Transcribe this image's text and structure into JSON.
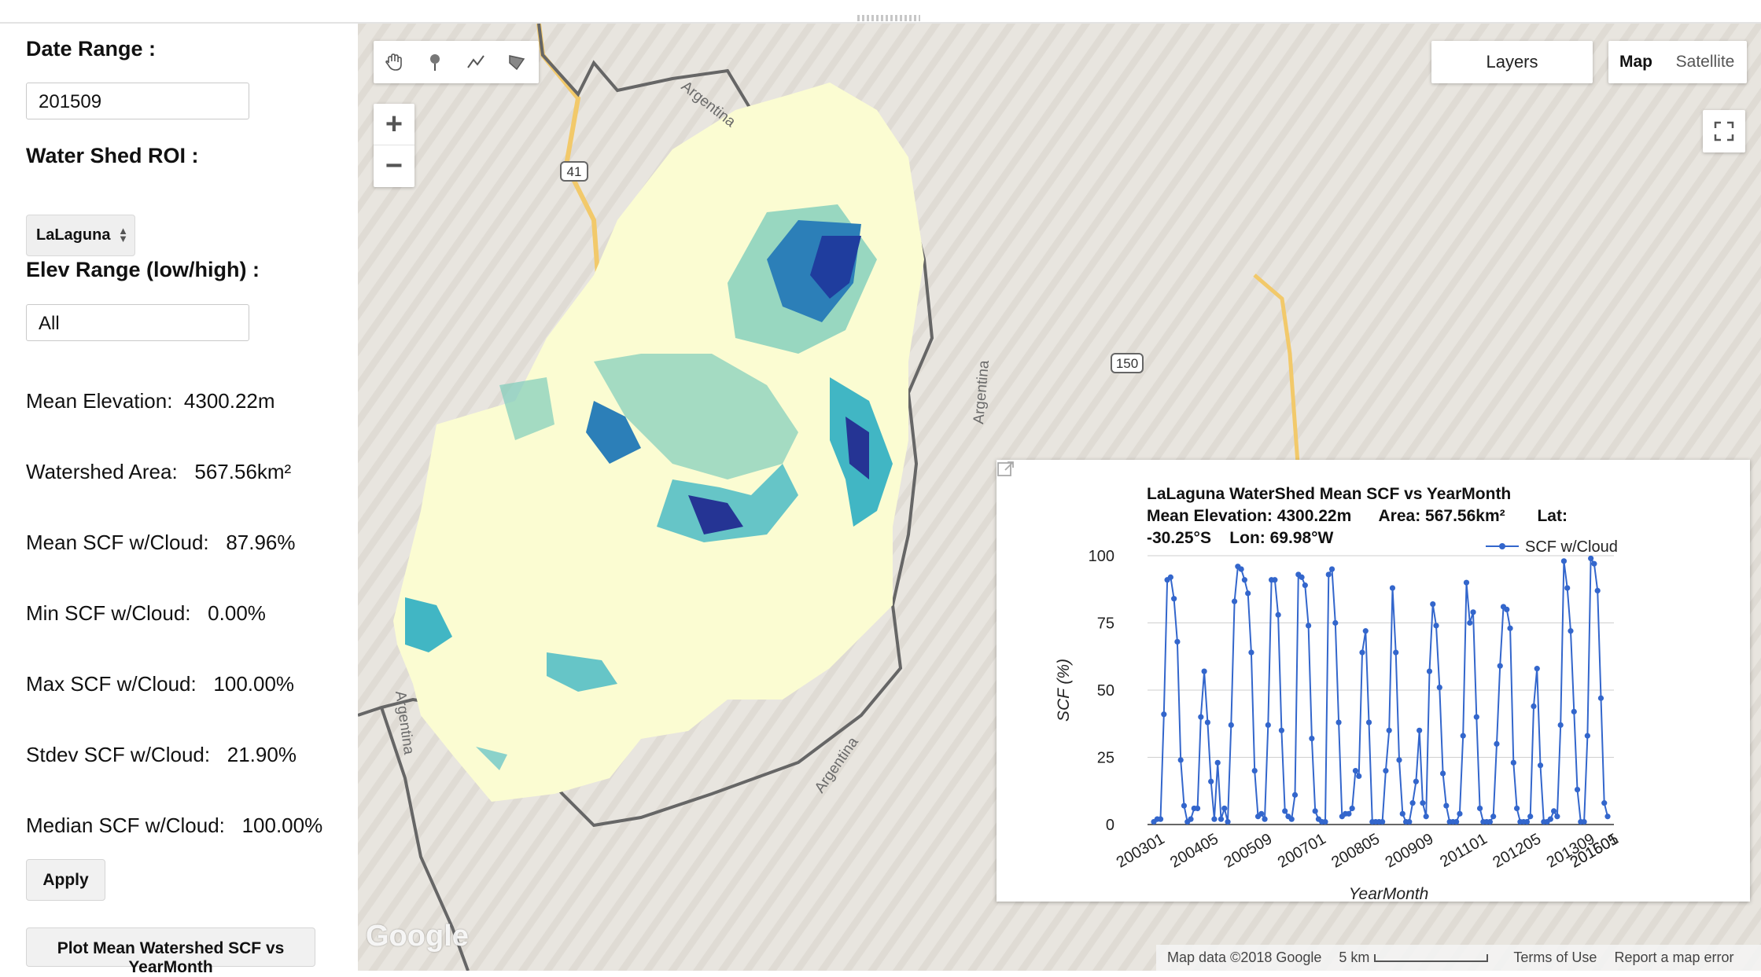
{
  "sidebar": {
    "date_range_label": "Date Range :",
    "date_value": "201509",
    "watershed_label": "Water Shed ROI :",
    "watershed_selected": "LaLaguna",
    "elev_label": "Elev Range (low/high) :",
    "elev_value": "All",
    "stats": [
      {
        "label": "Mean Elevation:",
        "value": "4300.22m"
      },
      {
        "label": "Watershed Area:",
        "value": "567.56km²"
      },
      {
        "label": "Mean SCF w/Cloud:",
        "value": "87.96%"
      },
      {
        "label": "Min SCF w/Cloud:",
        "value": "0.00%"
      },
      {
        "label": "Max SCF w/Cloud:",
        "value": "100.00%"
      },
      {
        "label": "Stdev SCF w/Cloud:",
        "value": "21.90%"
      },
      {
        "label": "Median SCF w/Cloud:",
        "value": "100.00%"
      }
    ],
    "apply_label": "Apply",
    "plot_label": "Plot Mean Watershed SCF vs YearMonth"
  },
  "map": {
    "layers_label": "Layers",
    "map_label": "Map",
    "satellite_label": "Satellite",
    "zoom_in": "+",
    "zoom_out": "−",
    "route_41": "41",
    "route_150": "150",
    "place_labels": [
      "Argentina",
      "Argentina",
      "Argentina",
      "Argentina"
    ],
    "attribution": "Map data ©2018 Google",
    "scale_label": "5 km",
    "terms": "Terms of Use",
    "report": "Report a map error",
    "logo": "Google",
    "colors": {
      "low": "#fbfcd2",
      "mid": "#41b6c4",
      "high": "#1f3d9e",
      "max": "#0c1f6b"
    }
  },
  "chart_data": {
    "type": "line",
    "title": "LaLaguna WaterShed Mean SCF vs YearMonth",
    "subtitle_line1": "Mean Elevation: 4300.22m      Area: 567.56km²       Lat:",
    "subtitle_line2": "-30.25°S    Lon: 69.98°W",
    "xlabel": "YearMonth",
    "ylabel": "SCF (%)",
    "ylim": [
      0,
      100
    ],
    "yticks": [
      "0",
      "25",
      "50",
      "75",
      "100"
    ],
    "xticks": [
      "200301",
      "200405",
      "200509",
      "200701",
      "200805",
      "200909",
      "201101",
      "201205",
      "201309",
      "201501",
      "201605"
    ],
    "legend_position": "top-right",
    "series": [
      {
        "name": "SCF w/Cloud",
        "color": "#3366cc",
        "values": [
          1,
          2,
          2,
          41,
          91,
          92,
          84,
          68,
          24,
          7,
          1,
          2,
          6,
          6,
          40,
          57,
          38,
          16,
          2,
          23,
          2,
          6,
          1,
          37,
          83,
          96,
          95,
          91,
          86,
          64,
          20,
          3,
          4,
          2,
          37,
          91,
          91,
          78,
          35,
          5,
          3,
          2,
          11,
          93,
          92,
          89,
          74,
          32,
          5,
          2,
          1,
          1,
          93,
          95,
          75,
          38,
          3,
          4,
          4,
          6,
          20,
          18,
          64,
          72,
          38,
          1,
          1,
          1,
          1,
          20,
          35,
          88,
          64,
          24,
          4,
          1,
          1,
          8,
          16,
          35,
          8,
          3,
          57,
          82,
          74,
          51,
          19,
          7,
          1,
          1,
          1,
          4,
          33,
          90,
          75,
          79,
          40,
          6,
          1,
          1,
          1,
          3,
          30,
          59,
          81,
          80,
          73,
          23,
          6,
          1,
          1,
          1,
          3,
          44,
          58,
          22,
          1,
          1,
          2,
          5,
          3,
          37,
          98,
          88,
          72,
          42,
          13,
          1,
          1,
          33,
          99,
          97,
          87,
          47,
          8,
          3
        ]
      }
    ]
  }
}
